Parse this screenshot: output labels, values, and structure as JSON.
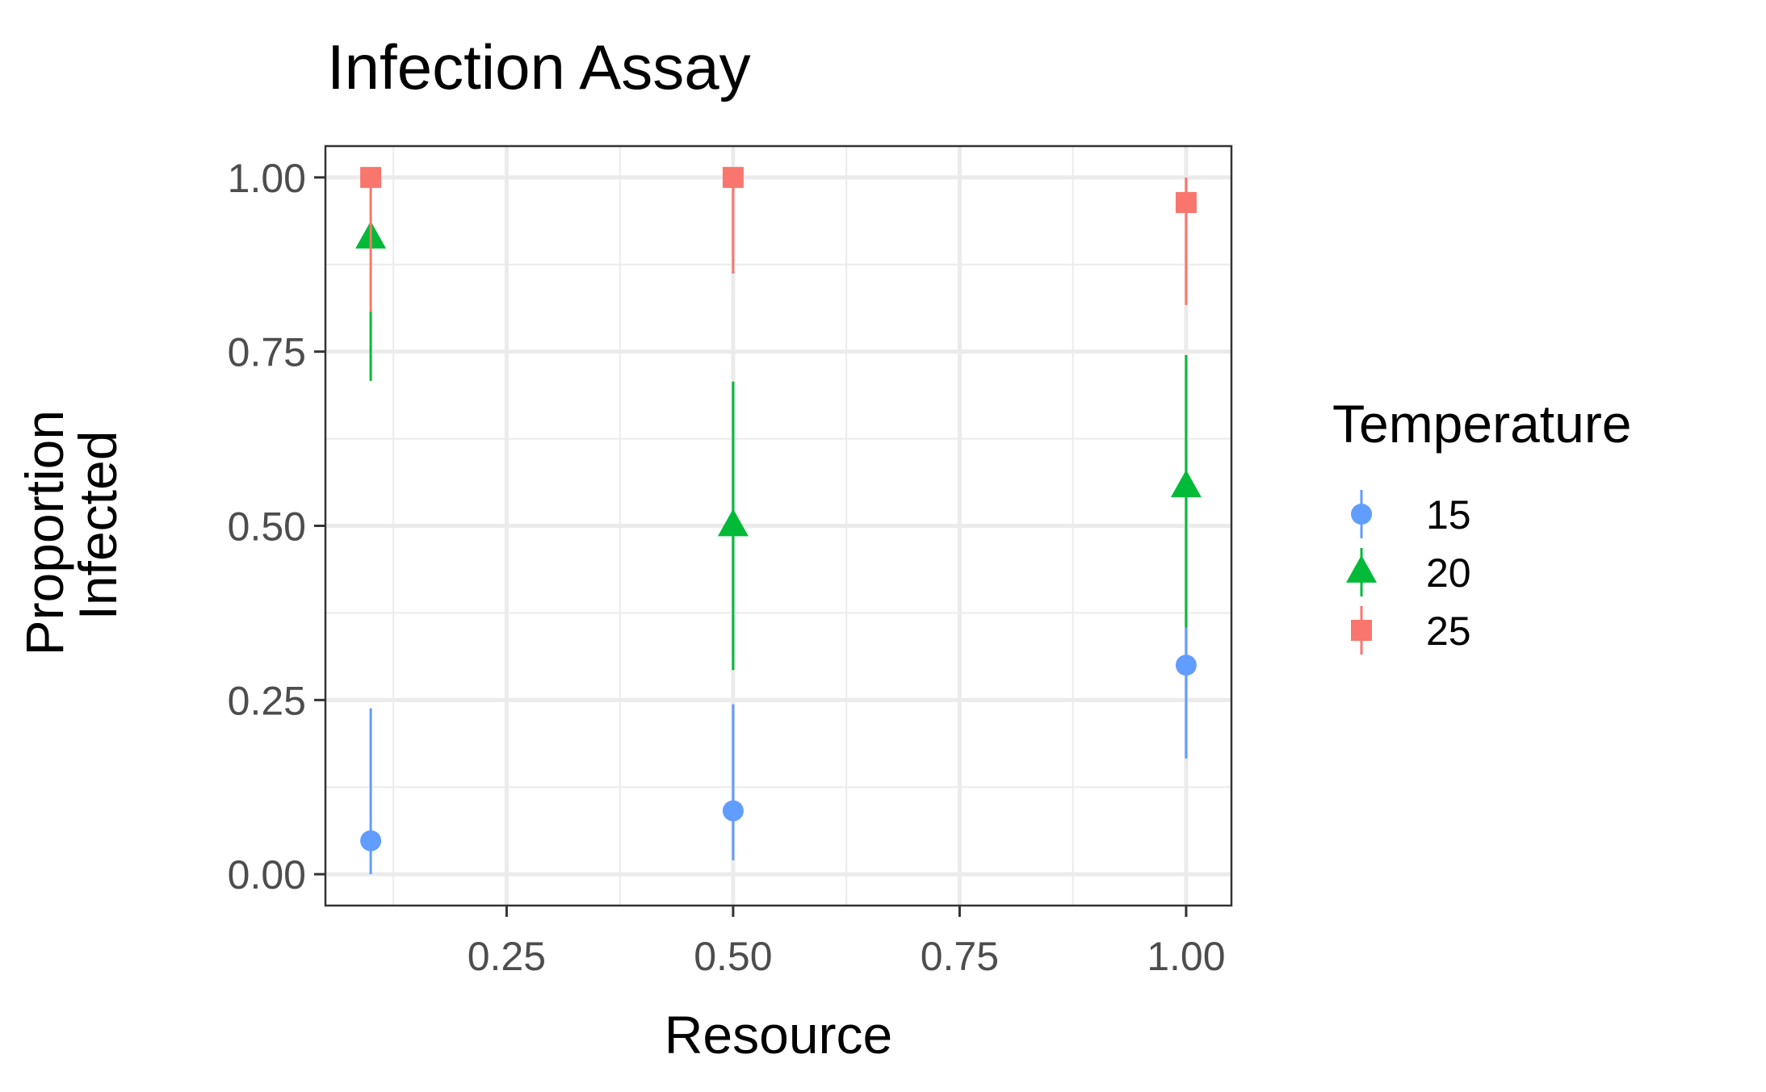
{
  "chart_data": {
    "type": "scatter",
    "title": "Infection Assay",
    "xlabel": "Resource",
    "ylabel_lines": [
      "Proportion",
      "Infected"
    ],
    "xlim": [
      0.05,
      1.05
    ],
    "ylim": [
      -0.045,
      1.045
    ],
    "x_ticks": [
      0.25,
      0.5,
      0.75,
      1.0
    ],
    "x_tick_labels": [
      "0.25",
      "0.50",
      "0.75",
      "1.00"
    ],
    "y_ticks": [
      0.0,
      0.25,
      0.5,
      0.75,
      1.0
    ],
    "y_tick_labels": [
      "0.00",
      "0.25",
      "0.50",
      "0.75",
      "1.00"
    ],
    "grid": true,
    "error_bars": true,
    "legend": {
      "title": "Temperature",
      "position": "right"
    },
    "series": [
      {
        "name": "15",
        "color": "#619CFF",
        "shape": "circle",
        "points": [
          {
            "x": 0.1,
            "y": 0.048,
            "lo": 0.0,
            "hi": 0.238
          },
          {
            "x": 0.5,
            "y": 0.091,
            "lo": 0.02,
            "hi": 0.244
          },
          {
            "x": 1.0,
            "y": 0.3,
            "lo": 0.166,
            "hi": 0.354
          }
        ]
      },
      {
        "name": "20",
        "color": "#00BA38",
        "shape": "triangle",
        "points": [
          {
            "x": 0.1,
            "y": 0.913,
            "lo": 0.708,
            "hi": 0.807
          },
          {
            "x": 0.5,
            "y": 0.5,
            "lo": 0.293,
            "hi": 0.707
          },
          {
            "x": 1.0,
            "y": 0.556,
            "lo": 0.354,
            "hi": 0.745
          }
        ]
      },
      {
        "name": "25",
        "color": "#F8766D",
        "shape": "square",
        "points": [
          {
            "x": 0.1,
            "y": 1.0,
            "lo": 0.807,
            "hi": 1.0
          },
          {
            "x": 0.5,
            "y": 1.0,
            "lo": 0.862,
            "hi": 1.0
          },
          {
            "x": 1.0,
            "y": 0.964,
            "lo": 0.817,
            "hi": 1.0
          }
        ]
      }
    ]
  }
}
